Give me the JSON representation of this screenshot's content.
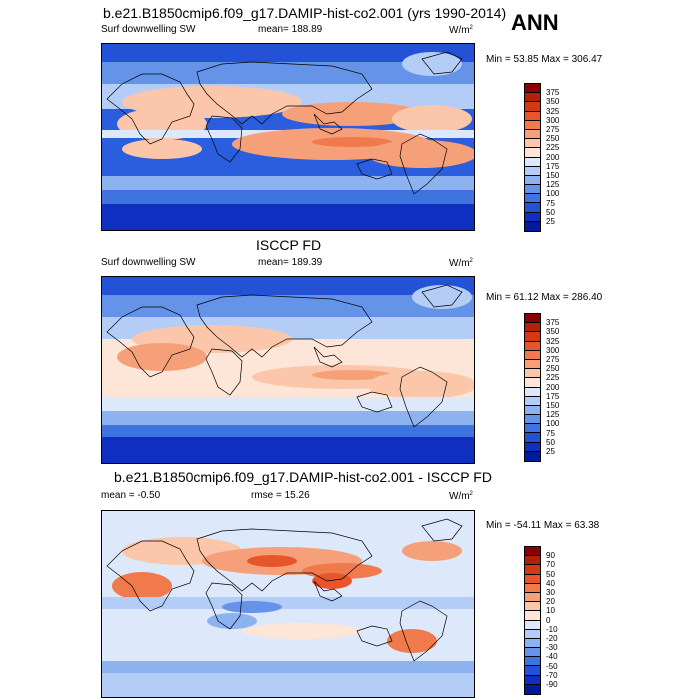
{
  "panel1": {
    "title": "b.e21.B1850cmip6.f09_g17.DAMIP-hist-co2.001 (yrs 1990-2014)",
    "season": "ANN",
    "left": "Surf downwelling SW",
    "mean": "mean= 188.89",
    "units": "W/m",
    "units_sup": "2",
    "minmax": "Min =  53.85 Max = 306.47"
  },
  "panel2": {
    "title": "ISCCP FD",
    "left": "Surf downwelling SW",
    "mean": "mean= 189.39",
    "units": "W/m",
    "units_sup": "2",
    "minmax": "Min =  61.12 Max = 286.40"
  },
  "panel3": {
    "title": "b.e21.B1850cmip6.f09_g17.DAMIP-hist-co2.001 - ISCCP FD",
    "mean": "mean =  -0.50",
    "rmse": "rmse =  15.26",
    "units": "W/m",
    "units_sup": "2",
    "minmax": "Min = -54.11 Max =  63.38"
  },
  "colorbar_abs": {
    "ticks": [
      "375",
      "350",
      "325",
      "300",
      "275",
      "250",
      "225",
      "200",
      "175",
      "150",
      "125",
      "100",
      "75",
      "50",
      "25"
    ],
    "colors": [
      "#8b0000",
      "#b3200a",
      "#d13a12",
      "#e8552a",
      "#f07a4c",
      "#f6a07a",
      "#fbc6a9",
      "#fde6d8",
      "#dde8fb",
      "#b4cdf7",
      "#8db2f0",
      "#6593e8",
      "#3f74e0",
      "#2352d6",
      "#0e2fbf",
      "#001a99"
    ]
  },
  "colorbar_diff": {
    "ticks": [
      "90",
      "70",
      "50",
      "40",
      "30",
      "20",
      "10",
      "0",
      "-10",
      "-20",
      "-30",
      "-40",
      "-50",
      "-70",
      "-90"
    ],
    "colors": [
      "#8b0000",
      "#b3200a",
      "#d13a12",
      "#e8552a",
      "#f07a4c",
      "#f6a07a",
      "#fbc6a9",
      "#fde6d8",
      "#dde8fb",
      "#b4cdf7",
      "#8db2f0",
      "#6593e8",
      "#3f74e0",
      "#2352d6",
      "#0e2fbf",
      "#001a99"
    ]
  }
}
